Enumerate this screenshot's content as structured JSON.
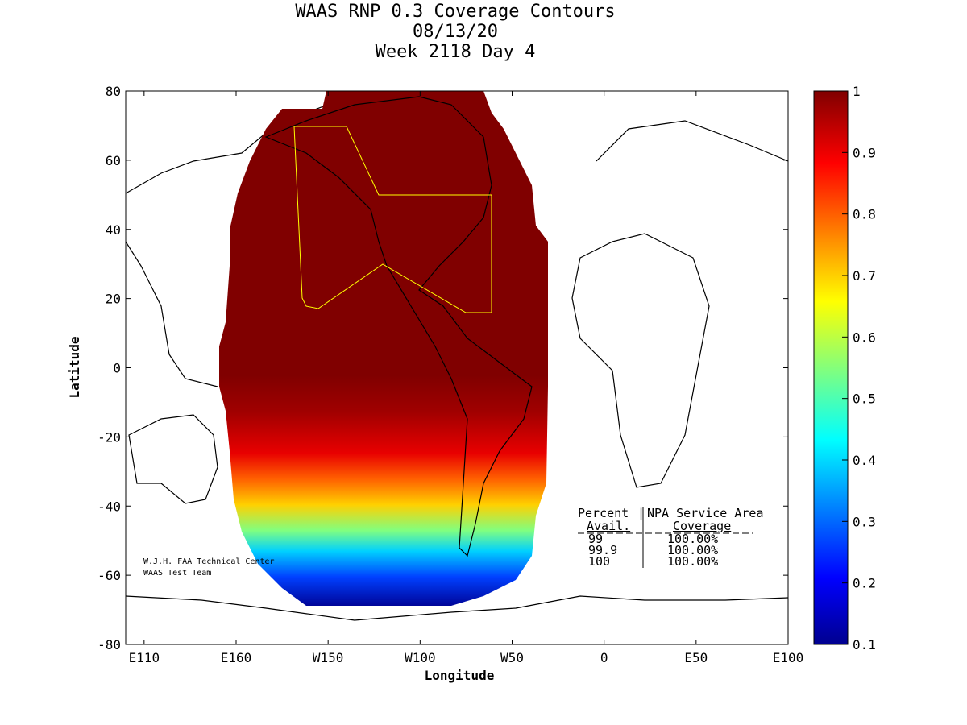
{
  "chart_data": {
    "type": "heatmap",
    "title": [
      "WAAS RNP 0.3 Coverage Contours",
      "08/13/20",
      "Week 2118 Day 4"
    ],
    "xlabel": "Longitude",
    "ylabel": "Latitude",
    "xlim": [
      100,
      460
    ],
    "ylim": [
      -80,
      80
    ],
    "xticks": [
      {
        "v": 110,
        "label": "E110"
      },
      {
        "v": 160,
        "label": "E160"
      },
      {
        "v": 210,
        "label": "W150"
      },
      {
        "v": 260,
        "label": "W100"
      },
      {
        "v": 310,
        "label": "W50"
      },
      {
        "v": 360,
        "label": "0"
      },
      {
        "v": 410,
        "label": "E50"
      },
      {
        "v": 460,
        "label": "E100"
      }
    ],
    "yticks": [
      {
        "v": 80,
        "label": "80"
      },
      {
        "v": 60,
        "label": "60"
      },
      {
        "v": 40,
        "label": "40"
      },
      {
        "v": 20,
        "label": "20"
      },
      {
        "v": 0,
        "label": "0"
      },
      {
        "v": -20,
        "label": "-20"
      },
      {
        "v": -40,
        "label": "-40"
      },
      {
        "v": -60,
        "label": "-60"
      },
      {
        "v": -80,
        "label": "-80"
      }
    ],
    "colorbar": {
      "range": [
        0.1,
        1
      ],
      "ticks": [
        "1",
        "0.9",
        "0.8",
        "0.7",
        "0.6",
        "0.5",
        "0.4",
        "0.3",
        "0.2",
        "0.1"
      ]
    },
    "coverage_profile": [
      {
        "lat": 80,
        "value": 1.0
      },
      {
        "lat": -5,
        "value": 1.0
      },
      {
        "lat": -15,
        "value": 0.95
      },
      {
        "lat": -25,
        "value": 0.9
      },
      {
        "lat": -33,
        "value": 0.8
      },
      {
        "lat": -40,
        "value": 0.65
      },
      {
        "lat": -47,
        "value": 0.5
      },
      {
        "lat": -55,
        "value": 0.35
      },
      {
        "lat": -62,
        "value": 0.2
      },
      {
        "lat": -68,
        "value": 0.1
      }
    ],
    "annotations": {
      "credit": [
        "W.J.H. FAA Technical Center",
        "WAAS Test Team"
      ],
      "table": {
        "header1": [
          "Percent",
          "NPA Service Area"
        ],
        "header2": [
          "Avail.",
          "Coverage"
        ],
        "rows": [
          [
            "99",
            "100.00%"
          ],
          [
            "99.9",
            "100.00%"
          ],
          [
            "100",
            "100.00%"
          ]
        ]
      }
    }
  }
}
